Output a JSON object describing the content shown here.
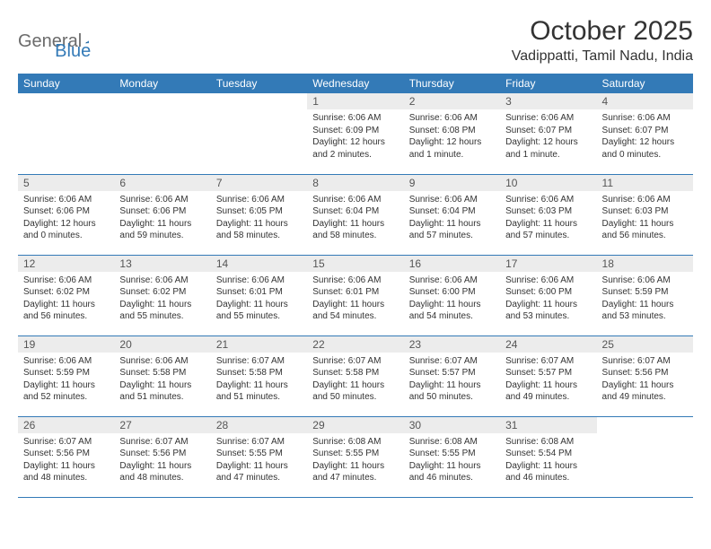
{
  "logo": {
    "word1": "General",
    "word2": "Blue",
    "color1": "#6b6b6b",
    "color2": "#337ab7"
  },
  "header": {
    "month_title": "October 2025",
    "location": "Vadippatti, Tamil Nadu, India"
  },
  "colors": {
    "brand": "#337ab7",
    "daynum_bg": "#ececec",
    "text": "#333333",
    "white": "#ffffff"
  },
  "weekdays": [
    "Sunday",
    "Monday",
    "Tuesday",
    "Wednesday",
    "Thursday",
    "Friday",
    "Saturday"
  ],
  "weeks": [
    [
      null,
      null,
      null,
      {
        "n": "1",
        "sr": "Sunrise: 6:06 AM",
        "ss": "Sunset: 6:09 PM",
        "dl": "Daylight: 12 hours and 2 minutes."
      },
      {
        "n": "2",
        "sr": "Sunrise: 6:06 AM",
        "ss": "Sunset: 6:08 PM",
        "dl": "Daylight: 12 hours and 1 minute."
      },
      {
        "n": "3",
        "sr": "Sunrise: 6:06 AM",
        "ss": "Sunset: 6:07 PM",
        "dl": "Daylight: 12 hours and 1 minute."
      },
      {
        "n": "4",
        "sr": "Sunrise: 6:06 AM",
        "ss": "Sunset: 6:07 PM",
        "dl": "Daylight: 12 hours and 0 minutes."
      }
    ],
    [
      {
        "n": "5",
        "sr": "Sunrise: 6:06 AM",
        "ss": "Sunset: 6:06 PM",
        "dl": "Daylight: 12 hours and 0 minutes."
      },
      {
        "n": "6",
        "sr": "Sunrise: 6:06 AM",
        "ss": "Sunset: 6:06 PM",
        "dl": "Daylight: 11 hours and 59 minutes."
      },
      {
        "n": "7",
        "sr": "Sunrise: 6:06 AM",
        "ss": "Sunset: 6:05 PM",
        "dl": "Daylight: 11 hours and 58 minutes."
      },
      {
        "n": "8",
        "sr": "Sunrise: 6:06 AM",
        "ss": "Sunset: 6:04 PM",
        "dl": "Daylight: 11 hours and 58 minutes."
      },
      {
        "n": "9",
        "sr": "Sunrise: 6:06 AM",
        "ss": "Sunset: 6:04 PM",
        "dl": "Daylight: 11 hours and 57 minutes."
      },
      {
        "n": "10",
        "sr": "Sunrise: 6:06 AM",
        "ss": "Sunset: 6:03 PM",
        "dl": "Daylight: 11 hours and 57 minutes."
      },
      {
        "n": "11",
        "sr": "Sunrise: 6:06 AM",
        "ss": "Sunset: 6:03 PM",
        "dl": "Daylight: 11 hours and 56 minutes."
      }
    ],
    [
      {
        "n": "12",
        "sr": "Sunrise: 6:06 AM",
        "ss": "Sunset: 6:02 PM",
        "dl": "Daylight: 11 hours and 56 minutes."
      },
      {
        "n": "13",
        "sr": "Sunrise: 6:06 AM",
        "ss": "Sunset: 6:02 PM",
        "dl": "Daylight: 11 hours and 55 minutes."
      },
      {
        "n": "14",
        "sr": "Sunrise: 6:06 AM",
        "ss": "Sunset: 6:01 PM",
        "dl": "Daylight: 11 hours and 55 minutes."
      },
      {
        "n": "15",
        "sr": "Sunrise: 6:06 AM",
        "ss": "Sunset: 6:01 PM",
        "dl": "Daylight: 11 hours and 54 minutes."
      },
      {
        "n": "16",
        "sr": "Sunrise: 6:06 AM",
        "ss": "Sunset: 6:00 PM",
        "dl": "Daylight: 11 hours and 54 minutes."
      },
      {
        "n": "17",
        "sr": "Sunrise: 6:06 AM",
        "ss": "Sunset: 6:00 PM",
        "dl": "Daylight: 11 hours and 53 minutes."
      },
      {
        "n": "18",
        "sr": "Sunrise: 6:06 AM",
        "ss": "Sunset: 5:59 PM",
        "dl": "Daylight: 11 hours and 53 minutes."
      }
    ],
    [
      {
        "n": "19",
        "sr": "Sunrise: 6:06 AM",
        "ss": "Sunset: 5:59 PM",
        "dl": "Daylight: 11 hours and 52 minutes."
      },
      {
        "n": "20",
        "sr": "Sunrise: 6:06 AM",
        "ss": "Sunset: 5:58 PM",
        "dl": "Daylight: 11 hours and 51 minutes."
      },
      {
        "n": "21",
        "sr": "Sunrise: 6:07 AM",
        "ss": "Sunset: 5:58 PM",
        "dl": "Daylight: 11 hours and 51 minutes."
      },
      {
        "n": "22",
        "sr": "Sunrise: 6:07 AM",
        "ss": "Sunset: 5:58 PM",
        "dl": "Daylight: 11 hours and 50 minutes."
      },
      {
        "n": "23",
        "sr": "Sunrise: 6:07 AM",
        "ss": "Sunset: 5:57 PM",
        "dl": "Daylight: 11 hours and 50 minutes."
      },
      {
        "n": "24",
        "sr": "Sunrise: 6:07 AM",
        "ss": "Sunset: 5:57 PM",
        "dl": "Daylight: 11 hours and 49 minutes."
      },
      {
        "n": "25",
        "sr": "Sunrise: 6:07 AM",
        "ss": "Sunset: 5:56 PM",
        "dl": "Daylight: 11 hours and 49 minutes."
      }
    ],
    [
      {
        "n": "26",
        "sr": "Sunrise: 6:07 AM",
        "ss": "Sunset: 5:56 PM",
        "dl": "Daylight: 11 hours and 48 minutes."
      },
      {
        "n": "27",
        "sr": "Sunrise: 6:07 AM",
        "ss": "Sunset: 5:56 PM",
        "dl": "Daylight: 11 hours and 48 minutes."
      },
      {
        "n": "28",
        "sr": "Sunrise: 6:07 AM",
        "ss": "Sunset: 5:55 PM",
        "dl": "Daylight: 11 hours and 47 minutes."
      },
      {
        "n": "29",
        "sr": "Sunrise: 6:08 AM",
        "ss": "Sunset: 5:55 PM",
        "dl": "Daylight: 11 hours and 47 minutes."
      },
      {
        "n": "30",
        "sr": "Sunrise: 6:08 AM",
        "ss": "Sunset: 5:55 PM",
        "dl": "Daylight: 11 hours and 46 minutes."
      },
      {
        "n": "31",
        "sr": "Sunrise: 6:08 AM",
        "ss": "Sunset: 5:54 PM",
        "dl": "Daylight: 11 hours and 46 minutes."
      },
      null
    ]
  ]
}
